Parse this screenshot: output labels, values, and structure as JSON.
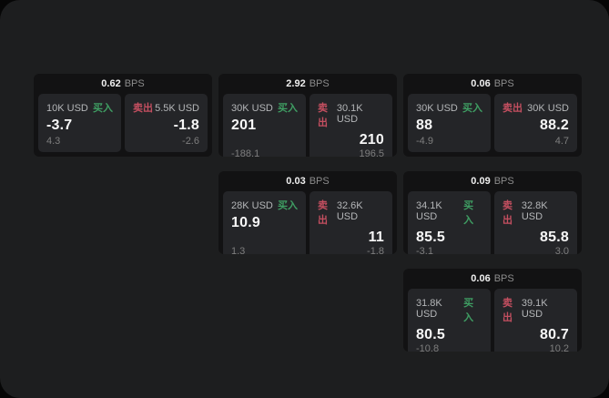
{
  "labels": {
    "bps_unit": "BPS",
    "buy": "买入",
    "sell": "卖出"
  },
  "colors": {
    "canvas_background": "#1d1e1f",
    "card_background": "#121213",
    "panel_background": "#242528",
    "buy_accent": "#3f9e63",
    "sell_accent": "#c44f60"
  },
  "cards": [
    {
      "bps": "0.62",
      "buy": {
        "amount": "10K USD",
        "value": "-3.7",
        "delta": "4.3"
      },
      "sell": {
        "amount": "5.5K USD",
        "value": "-1.8",
        "delta": "-2.6"
      }
    },
    {
      "bps": "2.92",
      "buy": {
        "amount": "30K USD",
        "value": "201",
        "delta": "-188.1"
      },
      "sell": {
        "amount": "30.1K USD",
        "value": "210",
        "delta": "196.5"
      }
    },
    {
      "bps": "0.06",
      "buy": {
        "amount": "30K USD",
        "value": "88",
        "delta": "-4.9"
      },
      "sell": {
        "amount": "30K USD",
        "value": "88.2",
        "delta": "4.7"
      }
    },
    {
      "bps": "0.03",
      "buy": {
        "amount": "28K USD",
        "value": "10.9",
        "delta": "1.3"
      },
      "sell": {
        "amount": "32.6K USD",
        "value": "11",
        "delta": "-1.8"
      }
    },
    {
      "bps": "0.09",
      "buy": {
        "amount": "34.1K USD",
        "value": "85.5",
        "delta": "-3.1"
      },
      "sell": {
        "amount": "32.8K USD",
        "value": "85.8",
        "delta": "3.0"
      }
    },
    {
      "bps": "0.06",
      "buy": {
        "amount": "31.8K USD",
        "value": "80.5",
        "delta": "-10.8"
      },
      "sell": {
        "amount": "39.1K USD",
        "value": "80.7",
        "delta": "10.2"
      }
    }
  ]
}
